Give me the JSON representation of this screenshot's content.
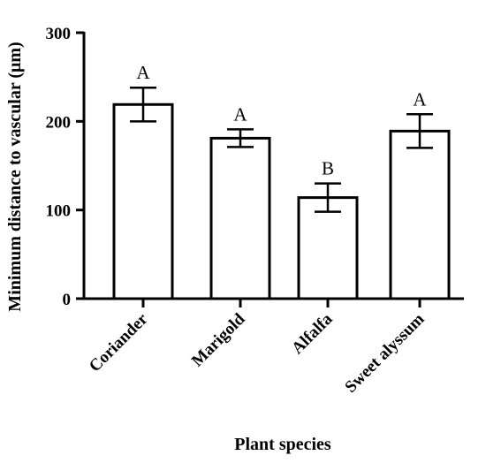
{
  "chart_data": {
    "type": "bar",
    "title": "",
    "xlabel": "Plant species",
    "ylabel": "Minimum distance to vascular (μm)",
    "categories": [
      "Coriander",
      "Marigold",
      "Alfalfa",
      "Sweet alyssum"
    ],
    "values": [
      219,
      181,
      114,
      189
    ],
    "error": [
      19,
      10,
      16,
      19
    ],
    "significance": [
      "A",
      "A",
      "B",
      "A"
    ],
    "ylim": [
      0,
      300
    ],
    "yticks": [
      0,
      100,
      200,
      300
    ],
    "grid": false,
    "legend": "none",
    "colors": {
      "bar_fill": "#ffffff",
      "bar_stroke": "#000000",
      "axis": "#000000"
    }
  }
}
